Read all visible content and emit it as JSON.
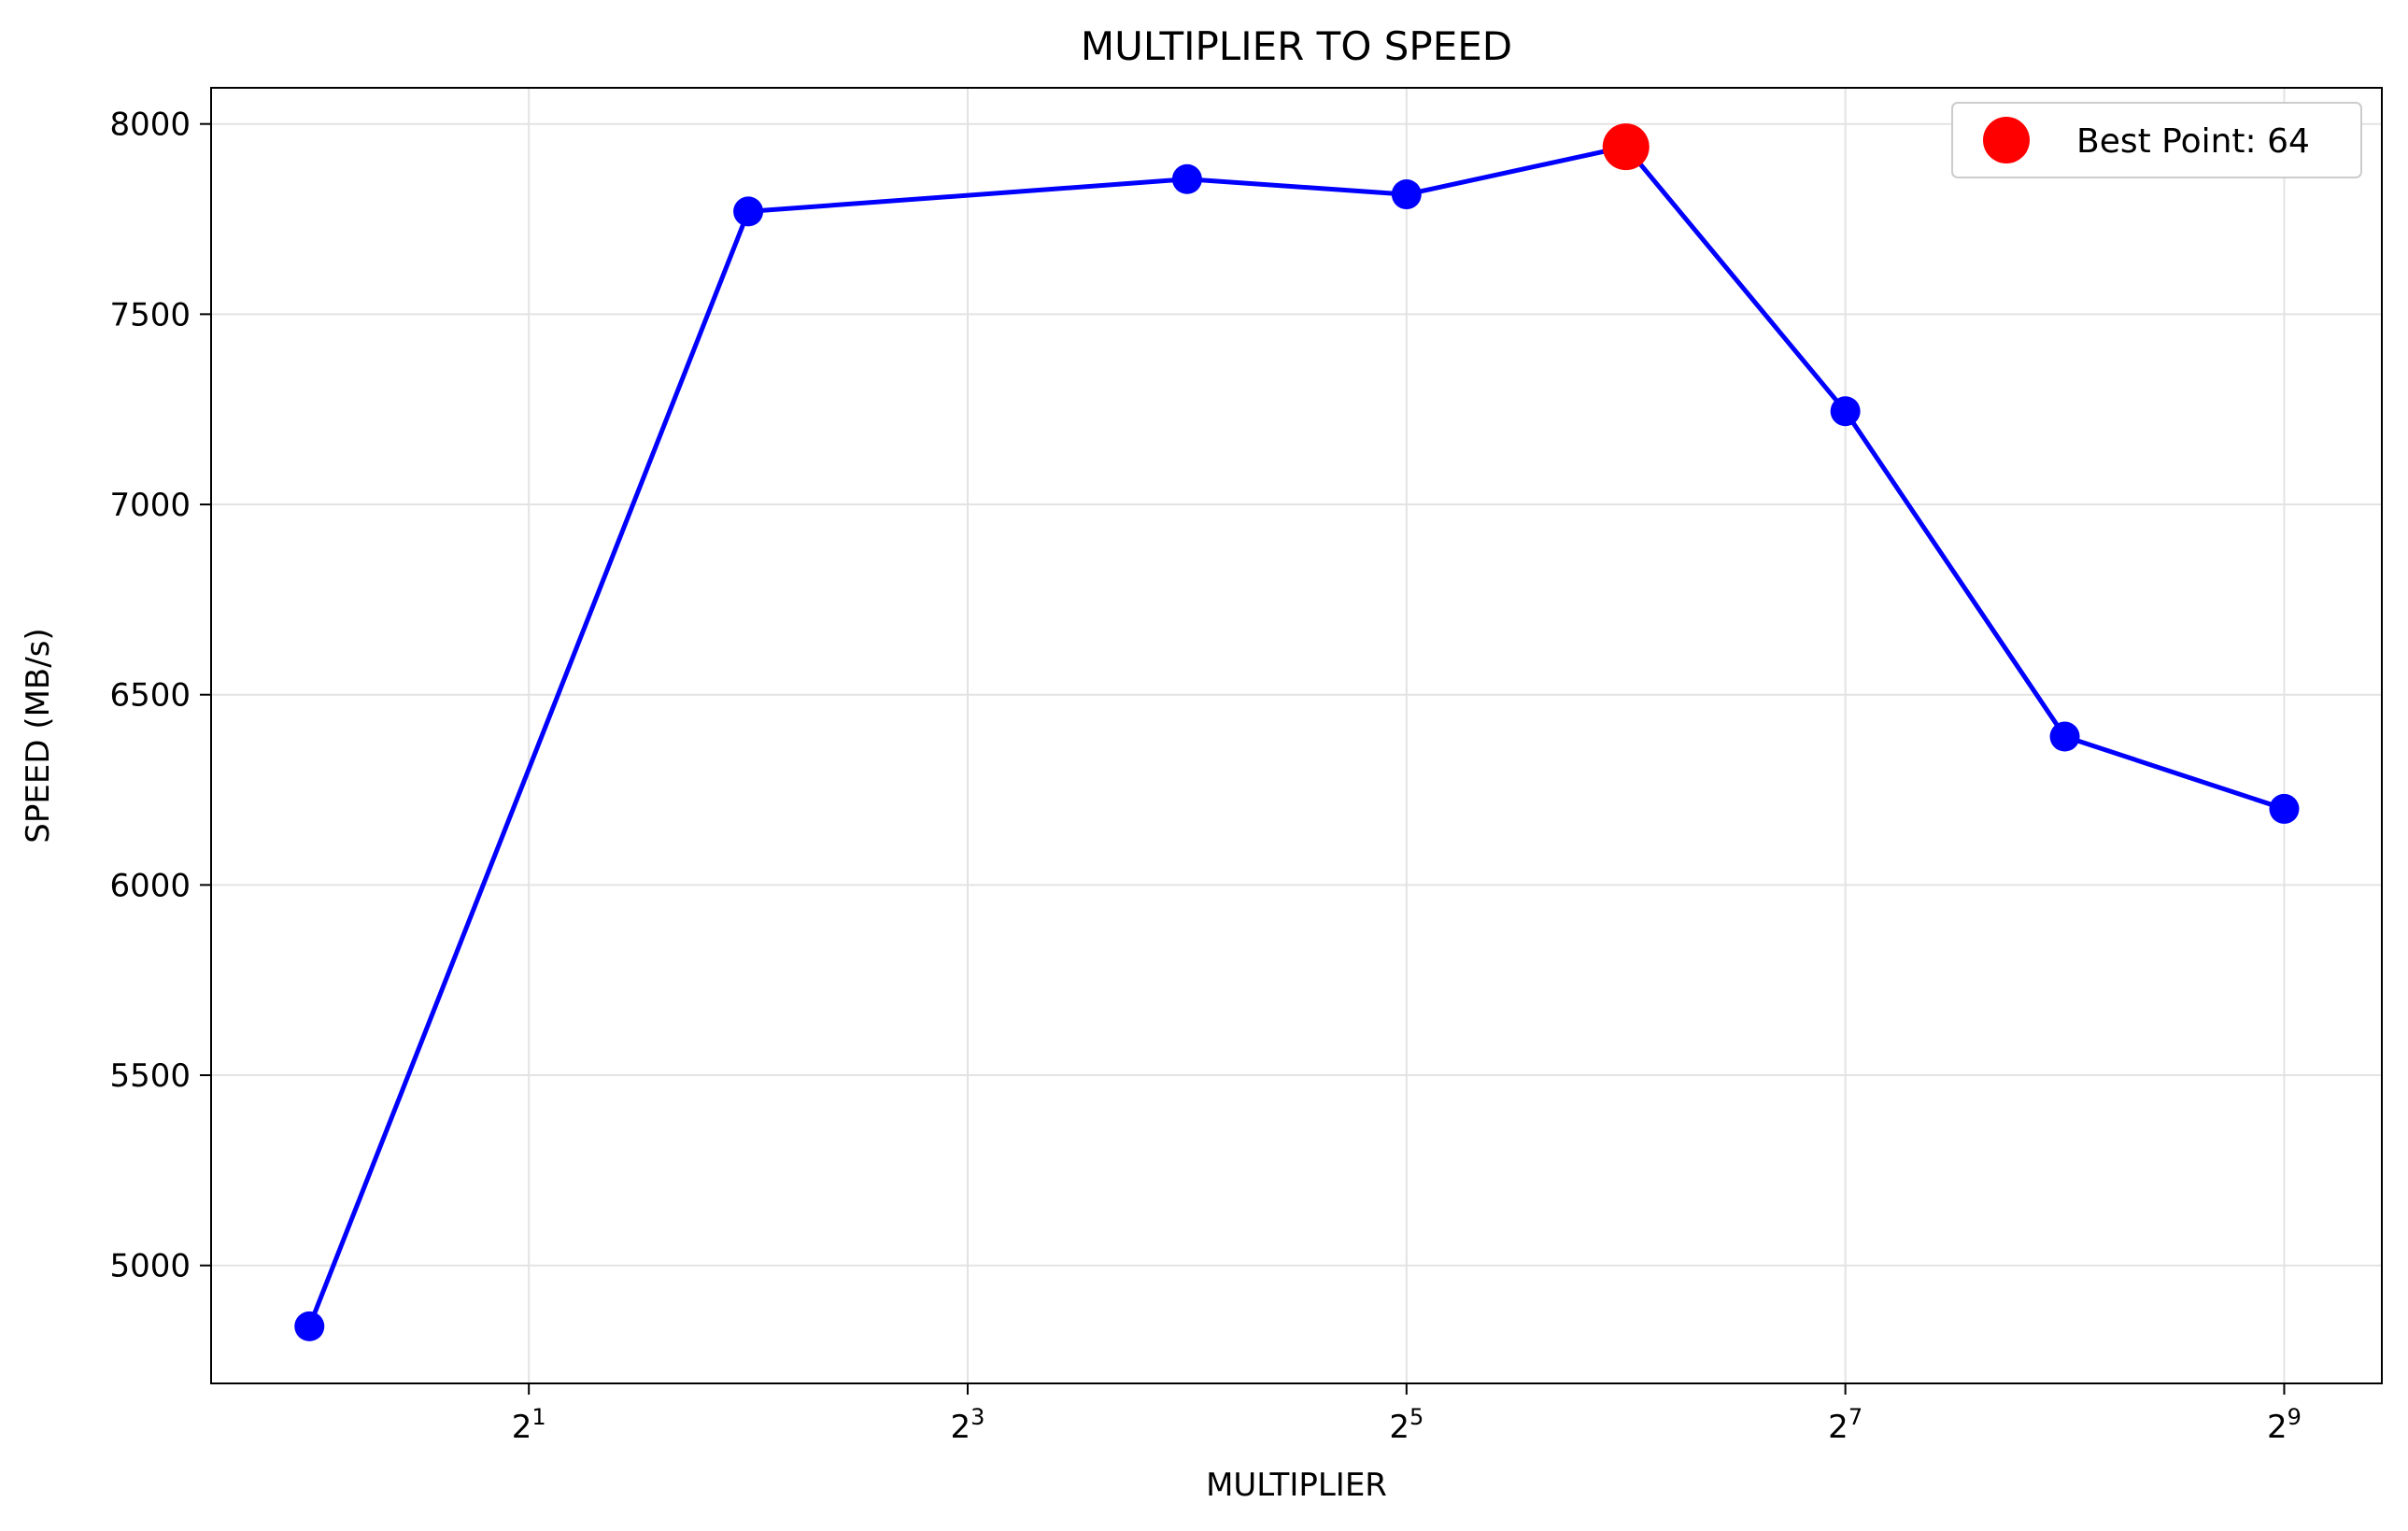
{
  "chart_data": {
    "type": "line",
    "title": "MULTIPLIER TO SPEED",
    "xlabel": "MULTIPLIER",
    "ylabel": "SPEED (MB/s)",
    "x_scale": "log2",
    "x_ticks": [
      {
        "value": 2,
        "base": "2",
        "exp": "1"
      },
      {
        "value": 8,
        "base": "2",
        "exp": "3"
      },
      {
        "value": 32,
        "base": "2",
        "exp": "5"
      },
      {
        "value": 128,
        "base": "2",
        "exp": "7"
      },
      {
        "value": 512,
        "base": "2",
        "exp": "9"
      }
    ],
    "y_ticks": [
      5000,
      5500,
      6000,
      6500,
      7000,
      7500,
      8000
    ],
    "xlim": [
      0.733,
      697
    ],
    "ylim": [
      4690,
      8095
    ],
    "grid": true,
    "series": [
      {
        "color": "#0000ff",
        "x": [
          1,
          4,
          16,
          32,
          64,
          128,
          256,
          512
        ],
        "y": [
          4840,
          7770,
          7855,
          7815,
          7940,
          7245,
          6390,
          6200
        ]
      }
    ],
    "best_point": {
      "x": 64,
      "y": 7940,
      "color": "#ff0000"
    },
    "legend": {
      "position": "top-right",
      "label": "Best Point: 64"
    }
  }
}
